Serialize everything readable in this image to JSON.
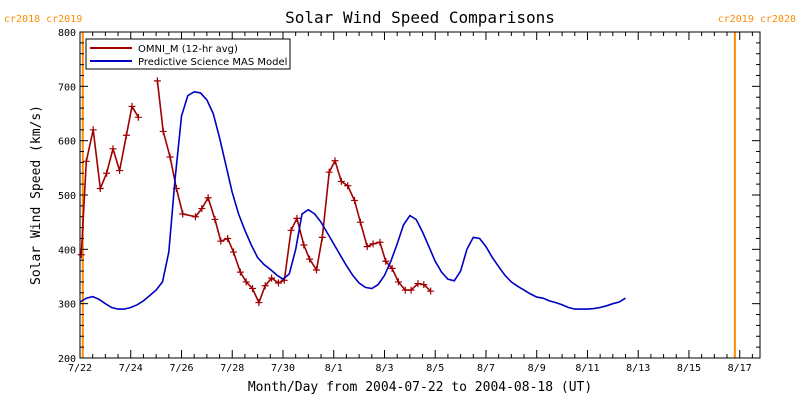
{
  "chart_data": {
    "type": "line",
    "title": "Solar Wind Speed Comparisons",
    "xlabel": "Month/Day from 2004-07-22 to 2004-08-18 (UT)",
    "ylabel": "Solar Wind Speed (km/s)",
    "xlim": [
      0,
      26.8
    ],
    "ylim": [
      200,
      800
    ],
    "x_ticks": [
      {
        "x": 0,
        "label": "7/22"
      },
      {
        "x": 2,
        "label": "7/24"
      },
      {
        "x": 4,
        "label": "7/26"
      },
      {
        "x": 6,
        "label": "7/28"
      },
      {
        "x": 8,
        "label": "7/30"
      },
      {
        "x": 10,
        "label": "8/1"
      },
      {
        "x": 12,
        "label": "8/3"
      },
      {
        "x": 14,
        "label": "8/5"
      },
      {
        "x": 16,
        "label": "8/7"
      },
      {
        "x": 18,
        "label": "8/9"
      },
      {
        "x": 20,
        "label": "8/11"
      },
      {
        "x": 22,
        "label": "8/13"
      },
      {
        "x": 24,
        "label": "8/15"
      },
      {
        "x": 26,
        "label": "8/17"
      }
    ],
    "y_ticks": [
      200,
      300,
      400,
      500,
      600,
      700,
      800
    ],
    "markers": [
      {
        "x": 0.11,
        "label": "cr2018 cr2019",
        "align": "left",
        "color": "#ff8c00"
      },
      {
        "x": 25.81,
        "label": "cr2019 cr2020",
        "align": "right",
        "color": "#ff8c00"
      }
    ],
    "legend_position": "top-left",
    "series": [
      {
        "name": "OMNI_M (12-hr avg)",
        "color": "#a00000",
        "marker": "+",
        "segments": [
          [
            [
              0.05,
              390
            ],
            [
              0.25,
              562
            ],
            [
              0.52,
              620
            ],
            [
              0.8,
              512
            ],
            [
              1.05,
              540
            ],
            [
              1.3,
              585
            ],
            [
              1.56,
              545
            ],
            [
              1.83,
              610
            ],
            [
              2.05,
              663
            ],
            [
              2.3,
              643
            ]
          ],
          [
            [
              3.05,
              710
            ],
            [
              3.28,
              617
            ],
            [
              3.55,
              570
            ],
            [
              3.8,
              512
            ],
            [
              4.05,
              465
            ],
            [
              4.55,
              460
            ],
            [
              4.8,
              475
            ],
            [
              5.05,
              495
            ],
            [
              5.32,
              455
            ],
            [
              5.55,
              415
            ],
            [
              5.82,
              420
            ],
            [
              6.05,
              395
            ],
            [
              6.32,
              358
            ],
            [
              6.55,
              340
            ],
            [
              6.8,
              328
            ],
            [
              7.05,
              302
            ],
            [
              7.3,
              333
            ],
            [
              7.55,
              347
            ],
            [
              7.82,
              338
            ],
            [
              8.05,
              343
            ],
            [
              8.32,
              435
            ],
            [
              8.55,
              457
            ],
            [
              8.82,
              408
            ],
            [
              9.05,
              382
            ],
            [
              9.32,
              362
            ],
            [
              9.55,
              422
            ],
            [
              9.82,
              542
            ],
            [
              10.05,
              563
            ],
            [
              10.3,
              525
            ],
            [
              10.55,
              517
            ],
            [
              10.82,
              490
            ],
            [
              11.05,
              450
            ],
            [
              11.32,
              405
            ],
            [
              11.55,
              410
            ],
            [
              11.82,
              413
            ],
            [
              12.05,
              378
            ],
            [
              12.3,
              365
            ],
            [
              12.55,
              340
            ],
            [
              12.82,
              325
            ],
            [
              13.05,
              325
            ],
            [
              13.32,
              337
            ],
            [
              13.55,
              335
            ],
            [
              13.82,
              323
            ]
          ]
        ]
      },
      {
        "name": "Predictive Science MAS Model",
        "color": "#0000c0",
        "marker": "none",
        "segments": [
          [
            [
              0,
              303
            ],
            [
              0.25,
              310
            ],
            [
              0.5,
              313
            ],
            [
              0.75,
              308
            ],
            [
              1,
              300
            ],
            [
              1.25,
              293
            ],
            [
              1.5,
              290
            ],
            [
              1.75,
              290
            ],
            [
              2,
              293
            ],
            [
              2.25,
              298
            ],
            [
              2.5,
              305
            ],
            [
              2.75,
              315
            ],
            [
              3,
              325
            ],
            [
              3.25,
              340
            ],
            [
              3.5,
              395
            ],
            [
              3.75,
              530
            ],
            [
              4,
              645
            ],
            [
              4.25,
              683
            ],
            [
              4.5,
              690
            ],
            [
              4.75,
              688
            ],
            [
              5,
              675
            ],
            [
              5.25,
              650
            ],
            [
              5.5,
              605
            ],
            [
              5.75,
              555
            ],
            [
              6,
              505
            ],
            [
              6.25,
              465
            ],
            [
              6.5,
              435
            ],
            [
              6.75,
              408
            ],
            [
              7,
              385
            ],
            [
              7.25,
              372
            ],
            [
              7.5,
              363
            ],
            [
              7.75,
              353
            ],
            [
              8,
              345
            ],
            [
              8.25,
              355
            ],
            [
              8.5,
              400
            ],
            [
              8.75,
              465
            ],
            [
              9,
              473
            ],
            [
              9.25,
              465
            ],
            [
              9.5,
              450
            ],
            [
              9.75,
              430
            ],
            [
              10,
              410
            ],
            [
              10.25,
              390
            ],
            [
              10.5,
              370
            ],
            [
              10.75,
              352
            ],
            [
              11,
              338
            ],
            [
              11.25,
              330
            ],
            [
              11.5,
              328
            ],
            [
              11.75,
              335
            ],
            [
              12,
              352
            ],
            [
              12.25,
              378
            ],
            [
              12.5,
              410
            ],
            [
              12.75,
              445
            ],
            [
              13,
              462
            ],
            [
              13.25,
              455
            ],
            [
              13.5,
              432
            ],
            [
              13.75,
              405
            ],
            [
              14,
              378
            ],
            [
              14.25,
              358
            ],
            [
              14.5,
              345
            ],
            [
              14.75,
              342
            ],
            [
              15,
              360
            ],
            [
              15.25,
              400
            ],
            [
              15.5,
              422
            ],
            [
              15.75,
              420
            ],
            [
              16,
              405
            ],
            [
              16.25,
              385
            ],
            [
              16.5,
              368
            ],
            [
              16.75,
              352
            ],
            [
              17,
              340
            ],
            [
              17.25,
              332
            ],
            [
              17.5,
              325
            ],
            [
              17.75,
              318
            ],
            [
              18,
              312
            ],
            [
              18.25,
              310
            ],
            [
              18.5,
              305
            ],
            [
              18.75,
              302
            ],
            [
              19,
              298
            ],
            [
              19.25,
              293
            ],
            [
              19.5,
              290
            ],
            [
              19.75,
              290
            ],
            [
              20,
              290
            ],
            [
              20.25,
              291
            ],
            [
              20.5,
              293
            ],
            [
              20.75,
              296
            ],
            [
              21,
              300
            ],
            [
              21.25,
              303
            ],
            [
              21.5,
              310
            ]
          ]
        ]
      }
    ]
  }
}
